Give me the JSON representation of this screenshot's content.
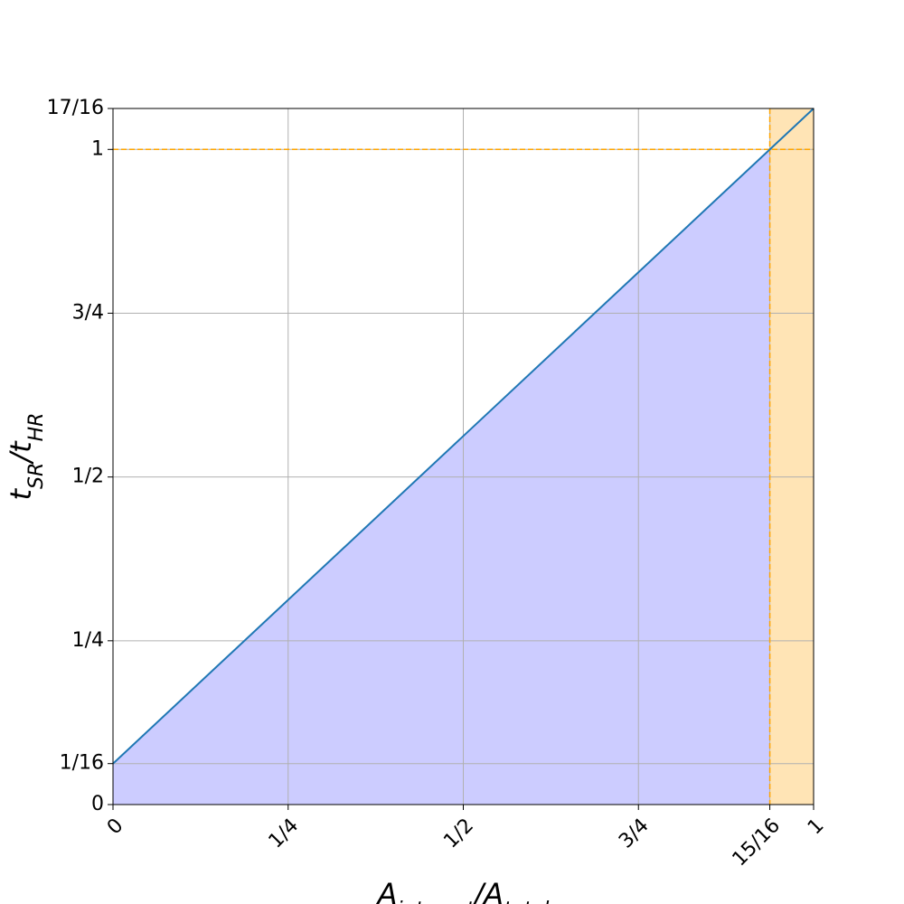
{
  "chart_data": {
    "type": "line",
    "x": [
      0,
      1
    ],
    "series": [
      {
        "color": "#1f77b4",
        "values": [
          0.0625,
          1.0625
        ]
      }
    ],
    "areas": [
      {
        "x": [
          0,
          0.9375
        ],
        "upper": [
          0.0625,
          1
        ],
        "color": "#ccccff"
      },
      {
        "x": [
          0.9375,
          1
        ],
        "upper": [
          1.0625,
          1.0625
        ],
        "color": "#ffe4b5"
      }
    ],
    "hlines": [
      {
        "y": 1,
        "color": "#ffa500"
      }
    ],
    "vlines": [
      {
        "x": 0.9375,
        "color": "#ffa500"
      }
    ],
    "xlim": [
      0,
      1
    ],
    "ylim": [
      0,
      1.0625
    ],
    "xticks": [
      0,
      {
        "value": 0.25,
        "label": "1/4"
      },
      {
        "value": 0.5,
        "label": "1/2"
      },
      {
        "value": 0.75,
        "label": "3/4"
      },
      {
        "value": 0.9375,
        "label": "15/16"
      },
      1
    ],
    "yticks": [
      0,
      {
        "value": 0.0625,
        "label": "1/16"
      },
      {
        "value": 0.25,
        "label": "1/4"
      },
      {
        "value": 0.5,
        "label": "1/2"
      },
      {
        "value": 0.75,
        "label": "3/4"
      },
      1,
      {
        "value": 1.0625,
        "label": "17/16"
      }
    ],
    "x_label": [
      {
        "text": "A"
      },
      {
        "text": "interest",
        "sub": true
      },
      {
        "text": "/A"
      },
      {
        "text": "total",
        "sub": true
      }
    ],
    "y_label": [
      {
        "text": "t"
      },
      {
        "text": "SR",
        "sub": true
      },
      {
        "text": "/t"
      },
      {
        "text": "HR",
        "sub": true
      }
    ],
    "grid": true
  }
}
